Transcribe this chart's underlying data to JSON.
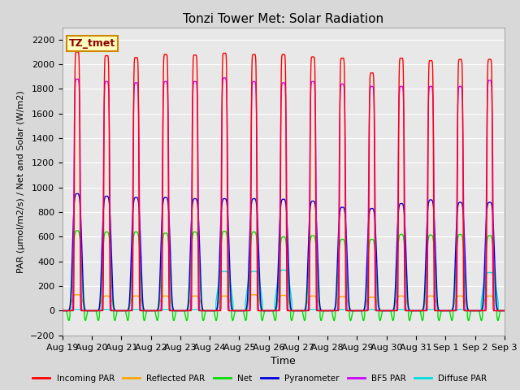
{
  "title": "Tonzi Tower Met: Solar Radiation",
  "ylabel": "PAR (μmol/m2/s) / Net and Solar (W/m2)",
  "xlabel": "Time",
  "ylim": [
    -200,
    2300
  ],
  "bg_color": "#d8d8d8",
  "plot_bg": "#e8e8e8",
  "tz_label": "TZ_tmet",
  "x_tick_labels": [
    "Aug 19",
    "Aug 20",
    "Aug 21",
    "Aug 22",
    "Aug 23",
    "Aug 24",
    "Aug 25",
    "Aug 26",
    "Aug 27",
    "Aug 28",
    "Aug 29",
    "Aug 30",
    "Aug 31",
    "Sep 1",
    "Sep 2",
    "Sep 3"
  ],
  "legend_items": [
    {
      "label": "Incoming PAR",
      "color": "#ff0000"
    },
    {
      "label": "Reflected PAR",
      "color": "#ffa500"
    },
    {
      "label": "Net",
      "color": "#00dd00"
    },
    {
      "label": "Pyranometer",
      "color": "#0000dd"
    },
    {
      "label": "BF5 PAR",
      "color": "#cc00ff"
    },
    {
      "label": "Diffuse PAR",
      "color": "#00dddd"
    }
  ],
  "n_days": 15,
  "pts_per_day": 288,
  "incoming_par_peaks": [
    2100,
    2070,
    2055,
    2080,
    2075,
    2090,
    2080,
    2080,
    2060,
    2050,
    1930,
    2050,
    2030,
    2040,
    2040
  ],
  "reflected_par_peaks": [
    130,
    120,
    120,
    120,
    120,
    120,
    130,
    125,
    120,
    115,
    110,
    120,
    120,
    120,
    120
  ],
  "net_peaks": [
    650,
    640,
    640,
    630,
    640,
    645,
    640,
    600,
    610,
    580,
    580,
    620,
    615,
    620,
    610
  ],
  "pyranometer_peaks": [
    950,
    930,
    920,
    920,
    910,
    910,
    910,
    905,
    890,
    840,
    830,
    870,
    900,
    880,
    880
  ],
  "bf5par_peaks": [
    1880,
    1860,
    1850,
    1860,
    1860,
    1890,
    1860,
    1850,
    1860,
    1840,
    1820,
    1820,
    1820,
    1820,
    1870
  ],
  "diffuse_par_peaks": [
    10,
    10,
    10,
    10,
    10,
    320,
    320,
    330,
    10,
    10,
    10,
    10,
    10,
    10,
    310
  ],
  "net_negative": -80,
  "diffuse_base": 8
}
